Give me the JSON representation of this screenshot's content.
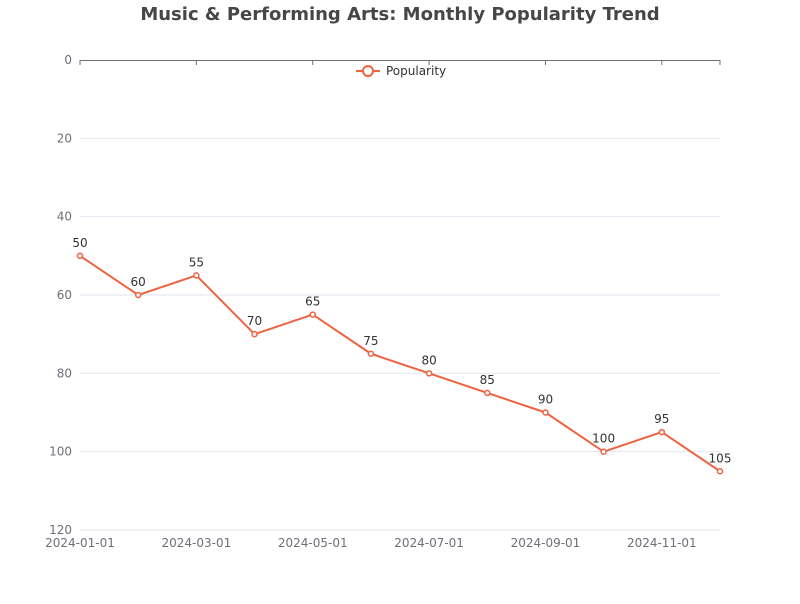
{
  "chart_data": {
    "type": "line",
    "title": "Music & Performing Arts: Monthly Popularity Trend",
    "x": [
      "2024-01-01",
      "2024-02-01",
      "2024-03-01",
      "2024-04-01",
      "2024-05-01",
      "2024-06-01",
      "2024-07-01",
      "2024-08-01",
      "2024-09-01",
      "2024-10-01",
      "2024-11-01",
      "2024-12-01"
    ],
    "x_tick_labels": [
      "2024-01-01",
      "2024-03-01",
      "2024-05-01",
      "2024-07-01",
      "2024-09-01",
      "2024-11-01"
    ],
    "series": [
      {
        "name": "Popularity",
        "values": [
          50,
          60,
          55,
          70,
          65,
          75,
          80,
          85,
          90,
          100,
          95,
          105
        ]
      }
    ],
    "ylim": [
      0,
      120
    ],
    "y_inverted": true,
    "y_ticks": [
      "0",
      "20",
      "40",
      "60",
      "80",
      "100",
      "120"
    ],
    "grid": true,
    "legend_position": "top-center",
    "color": "#ee6341"
  }
}
